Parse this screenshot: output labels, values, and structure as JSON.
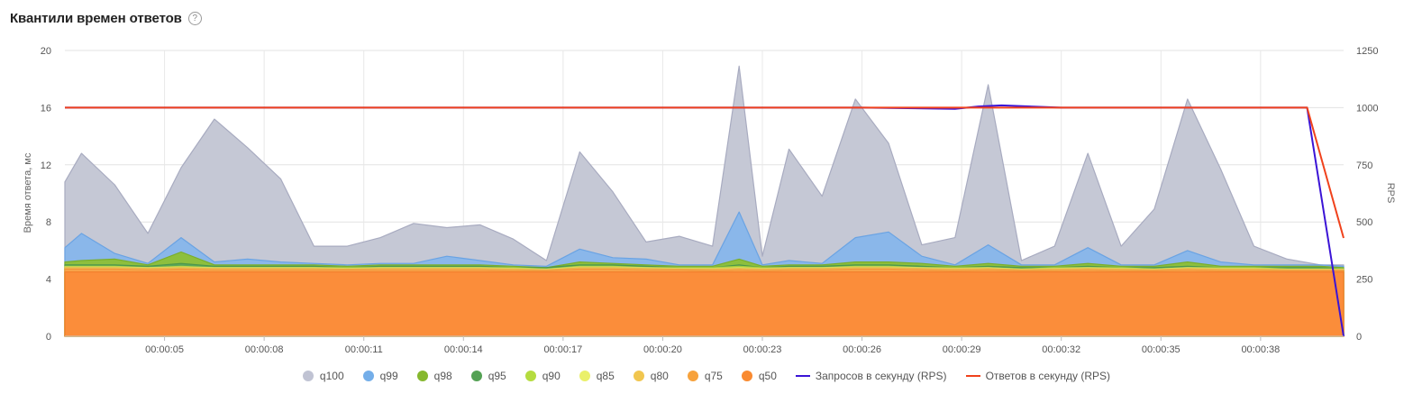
{
  "header": {
    "title": "Квантили времен ответов",
    "help_glyph": "?"
  },
  "chart_data": {
    "type": "area",
    "title": "Квантили времен ответов",
    "ylabel": "Время ответа, мс",
    "y2label": "RPS",
    "ylim": [
      0,
      20
    ],
    "y2lim": [
      0,
      1250
    ],
    "yticks": [
      "0",
      "4",
      "8",
      "12",
      "16",
      "20"
    ],
    "y2ticks": [
      "0",
      "250",
      "500",
      "750",
      "1000",
      "1250"
    ],
    "xlim": [
      2,
      40.5
    ],
    "x": [
      2,
      2.5,
      3.5,
      4.5,
      5.5,
      6.5,
      7.5,
      8.5,
      9.5,
      10.5,
      11.5,
      12.5,
      13.5,
      14.5,
      15.5,
      16.5,
      17.5,
      18.5,
      19.5,
      20.5,
      21.5,
      22.3,
      23,
      23.8,
      24.8,
      25.8,
      26.8,
      27.8,
      28.8,
      29.8,
      30.8,
      31.8,
      32.8,
      33.8,
      34.8,
      35.8,
      36.8,
      37.8,
      38.8,
      39.8,
      40.5
    ],
    "xticks": [
      {
        "x": 5,
        "label": "00:00:05"
      },
      {
        "x": 8,
        "label": "00:00:08"
      },
      {
        "x": 11,
        "label": "00:00:11"
      },
      {
        "x": 14,
        "label": "00:00:14"
      },
      {
        "x": 17,
        "label": "00:00:17"
      },
      {
        "x": 20,
        "label": "00:00:20"
      },
      {
        "x": 23,
        "label": "00:00:23"
      },
      {
        "x": 26,
        "label": "00:00:26"
      },
      {
        "x": 29,
        "label": "00:00:29"
      },
      {
        "x": 32,
        "label": "00:00:32"
      },
      {
        "x": 35,
        "label": "00:00:35"
      },
      {
        "x": 38,
        "label": "00:00:38"
      }
    ],
    "grid": true,
    "legend_position": "bottom-center",
    "series": [
      {
        "name": "q100",
        "color": "#c5c8d5",
        "stroke": "#a8abc0",
        "kind": "area",
        "values": [
          10.8,
          12.8,
          10.6,
          7.2,
          11.8,
          15.2,
          13.2,
          11.0,
          6.3,
          6.3,
          6.9,
          7.9,
          7.6,
          7.8,
          6.8,
          5.3,
          12.9,
          10.1,
          6.6,
          7.0,
          6.3,
          18.9,
          5.6,
          13.1,
          9.8,
          16.6,
          13.5,
          6.4,
          6.9,
          17.6,
          5.3,
          6.3,
          12.8,
          6.3,
          8.9,
          16.6,
          11.7,
          6.3,
          5.4,
          5.0,
          5.0
        ]
      },
      {
        "name": "q99",
        "color": "#8ab7ea",
        "stroke": "#6aa3e3",
        "kind": "area",
        "values": [
          6.2,
          7.2,
          5.8,
          5.1,
          6.9,
          5.2,
          5.4,
          5.2,
          5.1,
          5.0,
          5.1,
          5.1,
          5.6,
          5.3,
          5.0,
          4.9,
          6.1,
          5.5,
          5.4,
          5.0,
          5.0,
          8.7,
          5.0,
          5.3,
          5.1,
          6.9,
          7.3,
          5.6,
          5.0,
          6.4,
          5.0,
          5.0,
          6.2,
          5.0,
          5.0,
          6.0,
          5.2,
          5.0,
          5.0,
          5.0,
          4.9
        ]
      },
      {
        "name": "q98",
        "color": "#8dbf3e",
        "stroke": "#7aae2b",
        "kind": "area",
        "values": [
          5.2,
          5.3,
          5.4,
          5.0,
          5.9,
          5.0,
          5.0,
          5.0,
          5.0,
          4.9,
          5.0,
          5.0,
          5.0,
          5.0,
          4.9,
          4.8,
          5.2,
          5.1,
          5.0,
          4.9,
          4.9,
          5.4,
          4.9,
          5.0,
          5.0,
          5.2,
          5.2,
          5.1,
          4.9,
          5.1,
          4.9,
          4.9,
          5.1,
          4.9,
          4.9,
          5.2,
          4.9,
          4.9,
          4.9,
          4.9,
          4.8
        ]
      },
      {
        "name": "q95",
        "color": "#5aa65a",
        "stroke": "#4b974b",
        "kind": "area",
        "values": [
          5.0,
          5.0,
          5.0,
          4.9,
          5.1,
          4.9,
          4.9,
          4.9,
          4.9,
          4.8,
          4.9,
          4.9,
          4.9,
          4.9,
          4.8,
          4.8,
          5.0,
          5.0,
          4.9,
          4.8,
          4.8,
          5.0,
          4.8,
          4.9,
          4.9,
          5.0,
          5.0,
          4.9,
          4.8,
          4.9,
          4.8,
          4.8,
          4.9,
          4.8,
          4.8,
          4.9,
          4.8,
          4.8,
          4.8,
          4.8,
          4.7
        ]
      },
      {
        "name": "q90",
        "color": "#b7dc4c",
        "stroke": "#a6cc3a",
        "kind": "area",
        "values": [
          4.9,
          4.9,
          4.9,
          4.8,
          4.9,
          4.8,
          4.8,
          4.8,
          4.8,
          4.8,
          4.8,
          4.8,
          4.8,
          4.8,
          4.8,
          4.7,
          4.9,
          4.9,
          4.8,
          4.8,
          4.8,
          4.9,
          4.8,
          4.8,
          4.8,
          4.9,
          4.9,
          4.8,
          4.8,
          4.8,
          4.7,
          4.8,
          4.8,
          4.8,
          4.7,
          4.8,
          4.8,
          4.8,
          4.7,
          4.7,
          4.7
        ]
      },
      {
        "name": "q85",
        "color": "#e8ef77",
        "stroke": "#d8df60",
        "kind": "area",
        "values": [
          4.85,
          4.85,
          4.85,
          4.8,
          4.85,
          4.8,
          4.8,
          4.8,
          4.8,
          4.75,
          4.8,
          4.8,
          4.8,
          4.8,
          4.75,
          4.7,
          4.85,
          4.85,
          4.8,
          4.75,
          4.75,
          4.8,
          4.75,
          4.8,
          4.8,
          4.85,
          4.85,
          4.8,
          4.75,
          4.8,
          4.7,
          4.75,
          4.8,
          4.75,
          4.7,
          4.8,
          4.75,
          4.75,
          4.7,
          4.7,
          4.7
        ]
      },
      {
        "name": "q80",
        "color": "#f2c75c",
        "stroke": "#e6b84a",
        "kind": "area",
        "values": [
          4.8,
          4.8,
          4.8,
          4.75,
          4.8,
          4.75,
          4.75,
          4.75,
          4.75,
          4.7,
          4.75,
          4.75,
          4.75,
          4.75,
          4.7,
          4.65,
          4.8,
          4.8,
          4.75,
          4.7,
          4.7,
          4.75,
          4.7,
          4.75,
          4.75,
          4.8,
          4.8,
          4.75,
          4.7,
          4.75,
          4.65,
          4.7,
          4.75,
          4.7,
          4.65,
          4.75,
          4.7,
          4.7,
          4.65,
          4.65,
          4.65
        ]
      },
      {
        "name": "q75",
        "color": "#f8a44a",
        "stroke": "#f0963a",
        "kind": "area",
        "values": [
          4.7,
          4.7,
          4.7,
          4.65,
          4.7,
          4.65,
          4.65,
          4.65,
          4.65,
          4.65,
          4.65,
          4.65,
          4.65,
          4.65,
          4.6,
          4.6,
          4.7,
          4.7,
          4.65,
          4.65,
          4.6,
          4.65,
          4.6,
          4.65,
          4.65,
          4.7,
          4.7,
          4.65,
          4.6,
          4.65,
          4.6,
          4.6,
          4.65,
          4.6,
          4.6,
          4.65,
          4.6,
          4.6,
          4.6,
          4.6,
          4.6
        ]
      },
      {
        "name": "q50",
        "color": "#fb8d3a",
        "stroke": "#f27d2a",
        "kind": "area",
        "values": [
          4.5,
          4.5,
          4.5,
          4.5,
          4.5,
          4.5,
          4.5,
          4.5,
          4.5,
          4.5,
          4.5,
          4.5,
          4.5,
          4.5,
          4.5,
          4.5,
          4.5,
          4.5,
          4.5,
          4.5,
          4.5,
          4.5,
          4.5,
          4.5,
          4.5,
          4.5,
          4.5,
          4.5,
          4.5,
          4.5,
          4.5,
          4.5,
          4.5,
          4.5,
          4.5,
          4.5,
          4.5,
          4.5,
          4.5,
          4.5,
          4.5
        ]
      }
    ],
    "rps_x": [
      2,
      5,
      8,
      11,
      14,
      17,
      20,
      23,
      26,
      28.8,
      29.5,
      30.2,
      32,
      35,
      38,
      39.4,
      40.5
    ],
    "rps_series": [
      {
        "name": "Запросов в секунду (RPS)",
        "color": "#3b14d6",
        "axis": "right",
        "values": [
          1000,
          1000,
          1000,
          1000,
          1000,
          1000,
          1000,
          1000,
          1000,
          995,
          1005,
          1010,
          1000,
          1000,
          1000,
          1000,
          0
        ]
      },
      {
        "name": "Ответов в секунду (RPS)",
        "color": "#f0421c",
        "axis": "right",
        "values": [
          1000,
          1000,
          1000,
          1000,
          1000,
          1000,
          1000,
          1000,
          1000,
          1000,
          1000,
          1000,
          1000,
          1000,
          1000,
          1000,
          430
        ]
      }
    ]
  },
  "legend": [
    {
      "label": "q100",
      "type": "dot",
      "color": "#c0c3d3"
    },
    {
      "label": "q99",
      "type": "dot",
      "color": "#74aee9"
    },
    {
      "label": "q98",
      "type": "dot",
      "color": "#86b82f"
    },
    {
      "label": "q95",
      "type": "dot",
      "color": "#54a154"
    },
    {
      "label": "q90",
      "type": "dot",
      "color": "#b5dc3f"
    },
    {
      "label": "q85",
      "type": "dot",
      "color": "#eaf06a"
    },
    {
      "label": "q80",
      "type": "dot",
      "color": "#f1c64f"
    },
    {
      "label": "q75",
      "type": "dot",
      "color": "#f7a23c"
    },
    {
      "label": "q50",
      "type": "dot",
      "color": "#f98a30"
    },
    {
      "label": "Запросов в секунду (RPS)",
      "type": "line",
      "color": "#3b14d6"
    },
    {
      "label": "Ответов в секунду (RPS)",
      "type": "line",
      "color": "#f0421c"
    }
  ]
}
